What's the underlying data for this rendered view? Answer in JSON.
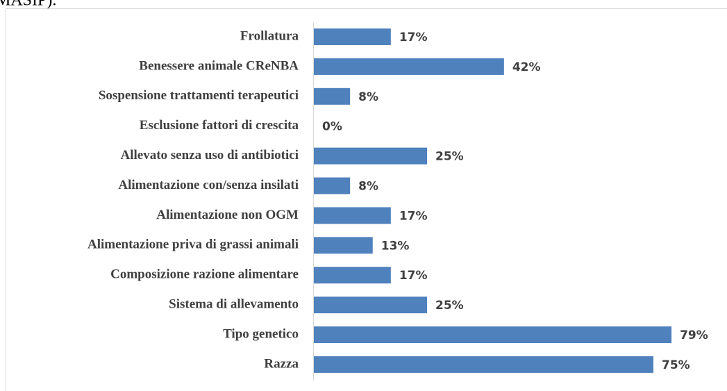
{
  "header_text": "MASIP).",
  "chart_data": {
    "type": "bar",
    "orientation": "horizontal",
    "color": "#4f81bd",
    "categories": [
      "Frollatura",
      "Benessere animale  CReNBA",
      "Sospensione trattamenti terapeutici",
      "Esclusione fattori di crescita",
      "Allevato senza uso di antibiotici",
      "Alimentazione con/senza insilati",
      "Alimentazione non OGM",
      "Alimentazione priva di grassi animali",
      "Composizione razione alimentare",
      "Sistema di allevamento",
      "Tipo genetico",
      "Razza"
    ],
    "values": [
      17,
      42,
      8,
      0,
      25,
      8,
      17,
      13,
      17,
      25,
      79,
      75
    ],
    "value_labels": [
      "17%",
      "42%",
      "8%",
      "0%",
      "25%",
      "8%",
      "17%",
      "13%",
      "17%",
      "25%",
      "79%",
      "75%"
    ]
  }
}
